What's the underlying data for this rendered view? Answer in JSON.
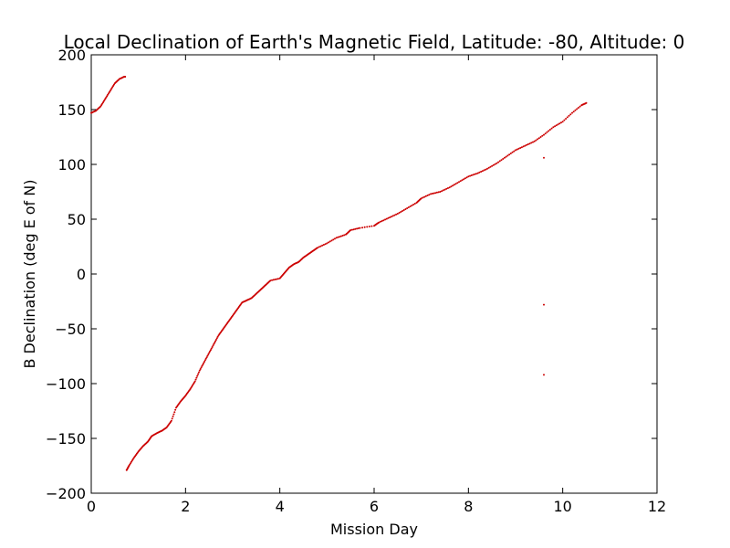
{
  "chart_data": {
    "type": "scatter",
    "title": "Local Declination of Earth's Magnetic Field, Latitude: -80, Altitude: 0",
    "xlabel": "Mission Day",
    "ylabel": "B Declination (deg E of N)",
    "xlim": [
      0,
      12
    ],
    "ylim": [
      -200,
      200
    ],
    "xticks": [
      0,
      2,
      4,
      6,
      8,
      10,
      12
    ],
    "yticks": [
      -200,
      -150,
      -100,
      -50,
      0,
      50,
      100,
      150,
      200
    ],
    "grid": false,
    "legend": "none",
    "marker_color": "#cc0000",
    "series": [
      {
        "points": [
          [
            0.0,
            147
          ],
          [
            0.1,
            149
          ],
          [
            0.2,
            153
          ],
          [
            0.3,
            160
          ],
          [
            0.4,
            167
          ],
          [
            0.5,
            174
          ],
          [
            0.6,
            178
          ],
          [
            0.7,
            180
          ],
          [
            0.72,
            180
          ],
          [
            0.75,
            -179
          ],
          [
            0.8,
            -175
          ],
          [
            0.9,
            -168
          ],
          [
            1.0,
            -162
          ],
          [
            1.1,
            -157
          ],
          [
            1.2,
            -153
          ],
          [
            1.28,
            -148
          ],
          [
            1.4,
            -145
          ],
          [
            1.5,
            -143
          ],
          [
            1.6,
            -140
          ],
          [
            1.7,
            -134
          ],
          [
            1.8,
            -122
          ],
          [
            1.9,
            -116
          ],
          [
            2.0,
            -111
          ],
          [
            2.1,
            -105
          ],
          [
            2.2,
            -98
          ],
          [
            2.3,
            -88
          ],
          [
            2.4,
            -80
          ],
          [
            2.5,
            -72
          ],
          [
            2.6,
            -64
          ],
          [
            2.7,
            -56
          ],
          [
            2.8,
            -50
          ],
          [
            2.9,
            -44
          ],
          [
            3.0,
            -38
          ],
          [
            3.1,
            -32
          ],
          [
            3.2,
            -26
          ],
          [
            3.3,
            -24
          ],
          [
            3.4,
            -22
          ],
          [
            3.5,
            -18
          ],
          [
            3.6,
            -14
          ],
          [
            3.7,
            -10
          ],
          [
            3.8,
            -6
          ],
          [
            4.0,
            -4
          ],
          [
            4.1,
            1
          ],
          [
            4.2,
            6
          ],
          [
            4.3,
            9
          ],
          [
            4.4,
            11
          ],
          [
            4.5,
            15
          ],
          [
            4.6,
            18
          ],
          [
            4.7,
            21
          ],
          [
            4.8,
            24
          ],
          [
            5.0,
            28
          ],
          [
            5.2,
            33
          ],
          [
            5.4,
            36
          ],
          [
            5.5,
            40
          ],
          [
            5.7,
            42
          ],
          [
            6.0,
            44
          ],
          [
            6.1,
            47
          ],
          [
            6.3,
            51
          ],
          [
            6.5,
            55
          ],
          [
            6.7,
            60
          ],
          [
            6.9,
            65
          ],
          [
            7.0,
            69
          ],
          [
            7.2,
            73
          ],
          [
            7.4,
            75
          ],
          [
            7.6,
            79
          ],
          [
            7.8,
            84
          ],
          [
            8.0,
            89
          ],
          [
            8.2,
            92
          ],
          [
            8.4,
            96
          ],
          [
            8.6,
            101
          ],
          [
            8.8,
            107
          ],
          [
            9.0,
            113
          ],
          [
            9.2,
            117
          ],
          [
            9.4,
            121
          ],
          [
            9.6,
            127
          ],
          [
            9.8,
            134
          ],
          [
            10.0,
            139
          ],
          [
            10.2,
            147
          ],
          [
            10.4,
            154
          ],
          [
            10.5,
            156
          ]
        ]
      },
      {
        "points": [
          [
            9.6,
            106
          ],
          [
            9.6,
            -28
          ],
          [
            9.6,
            -92
          ]
        ]
      }
    ]
  }
}
